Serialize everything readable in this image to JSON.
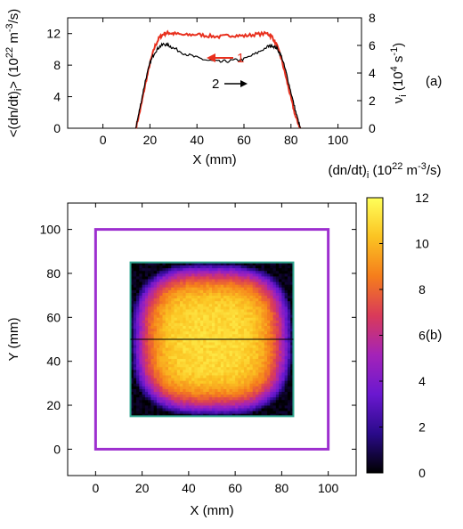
{
  "chart_data": [
    {
      "panel": "(a)",
      "type": "line",
      "xlabel": "X (mm)",
      "ylabel_left": "<(dn/dt)i> (10^22 m^-3/s)",
      "ylabel_right": "νi (10^4 s^-1)",
      "xlim": [
        -15,
        110
      ],
      "ylim_left": [
        0,
        14
      ],
      "ylim_right": [
        0,
        8
      ],
      "x_ticks": [
        0,
        20,
        40,
        60,
        80,
        100
      ],
      "y_ticks_left": [
        0,
        4,
        8,
        12
      ],
      "y_ticks_right": [
        0,
        2,
        4,
        6,
        8
      ],
      "annotations": [
        "1",
        "2"
      ],
      "series": [
        {
          "label": "1",
          "color": "#e8301e",
          "axis": "left",
          "x": [
            14,
            16,
            18,
            20,
            22,
            24,
            26,
            28,
            30,
            35,
            40,
            45,
            50,
            55,
            60,
            65,
            70,
            72,
            74,
            76,
            78,
            80,
            82,
            84
          ],
          "y": [
            0,
            2.5,
            5.5,
            8.2,
            10.3,
            11.5,
            12.0,
            12.1,
            12.0,
            11.8,
            11.9,
            11.7,
            11.6,
            11.8,
            11.7,
            11.9,
            12.0,
            11.6,
            10.5,
            8.7,
            6.3,
            3.8,
            1.4,
            0
          ]
        },
        {
          "label": "2",
          "color": "#000000",
          "axis": "right",
          "x": [
            14,
            16,
            18,
            20,
            22,
            24,
            26,
            28,
            30,
            35,
            40,
            45,
            50,
            55,
            60,
            65,
            70,
            72,
            74,
            76,
            78,
            80,
            82,
            84
          ],
          "y": [
            0,
            1.7,
            3.4,
            4.7,
            5.5,
            5.9,
            6.1,
            6.0,
            5.8,
            5.4,
            5.1,
            4.9,
            4.8,
            4.9,
            5.0,
            5.4,
            5.9,
            6.0,
            5.8,
            5.2,
            4.0,
            2.6,
            1.2,
            0
          ]
        }
      ]
    },
    {
      "panel": "(b)",
      "type": "heatmap",
      "title": "(dn/dt)i (10^22 m^-3/s)",
      "xlabel": "X (mm)",
      "ylabel": "Y (mm)",
      "xlim": [
        -12,
        112
      ],
      "ylim": [
        -12,
        112
      ],
      "x_ticks": [
        0,
        20,
        40,
        60,
        80,
        100
      ],
      "y_ticks": [
        0,
        20,
        40,
        60,
        80,
        100
      ],
      "colorbar_ticks": [
        0,
        2,
        4,
        6,
        8,
        10,
        12
      ],
      "colorbar_range": [
        0,
        12
      ],
      "colormap": [
        "#000000",
        "#2a0a8a",
        "#6a18d0",
        "#a423b8",
        "#d93a5a",
        "#f57d1c",
        "#fbc322",
        "#ffff5a"
      ],
      "heatmap_extent": {
        "x": [
          15,
          85
        ],
        "y": [
          15,
          85
        ]
      },
      "heatmap_peak": 11,
      "outer_boundary": {
        "x": [
          0,
          100
        ],
        "y": [
          0,
          100
        ],
        "color": "#9d2fcf"
      },
      "inner_boundary": {
        "x": [
          15,
          85
        ],
        "y": [
          15,
          85
        ],
        "color": "#2ea58e"
      },
      "cut_line_y": 50
    }
  ]
}
